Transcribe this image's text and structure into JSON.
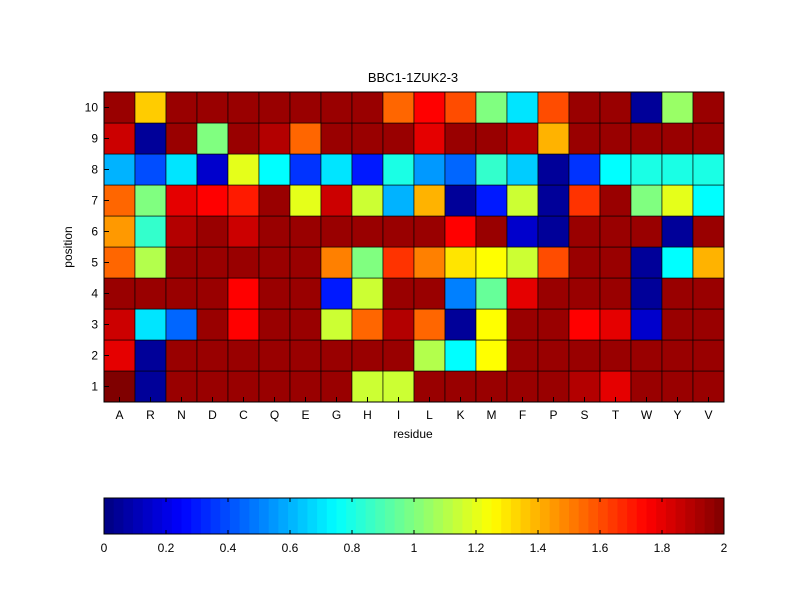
{
  "chart_data": {
    "type": "heatmap",
    "title": "BBC1-1ZUK2-3",
    "xlabel": "residue",
    "ylabel": "position",
    "x_categories": [
      "A",
      "R",
      "N",
      "D",
      "C",
      "Q",
      "E",
      "G",
      "H",
      "I",
      "L",
      "K",
      "M",
      "F",
      "P",
      "S",
      "T",
      "W",
      "Y",
      "V"
    ],
    "y_categories": [
      "1",
      "2",
      "3",
      "4",
      "5",
      "6",
      "7",
      "8",
      "9",
      "10"
    ],
    "values": [
      [
        2.0,
        0.05,
        1.95,
        1.95,
        1.95,
        1.95,
        1.95,
        1.95,
        1.15,
        1.15,
        1.95,
        1.95,
        1.95,
        1.95,
        1.95,
        1.9,
        1.8,
        1.95,
        1.95,
        1.95
      ],
      [
        1.8,
        0.05,
        1.95,
        1.95,
        1.95,
        1.95,
        1.95,
        1.95,
        1.95,
        1.95,
        1.1,
        0.75,
        1.25,
        1.95,
        1.95,
        1.95,
        1.95,
        1.95,
        1.95,
        1.95
      ],
      [
        1.85,
        0.7,
        0.45,
        1.95,
        1.75,
        1.95,
        1.95,
        1.15,
        1.55,
        1.9,
        1.55,
        0.05,
        1.25,
        1.95,
        1.95,
        1.75,
        1.8,
        0.15,
        1.95,
        1.95
      ],
      [
        1.95,
        1.95,
        1.95,
        1.95,
        1.75,
        1.95,
        1.95,
        0.3,
        1.15,
        1.95,
        1.95,
        0.5,
        0.95,
        1.8,
        1.95,
        1.95,
        1.95,
        0.05,
        1.95,
        1.95
      ],
      [
        1.55,
        1.1,
        1.95,
        1.95,
        1.95,
        1.95,
        1.95,
        1.5,
        1.0,
        1.65,
        1.5,
        1.3,
        1.25,
        1.15,
        1.6,
        1.95,
        1.95,
        0.05,
        0.75,
        1.4
      ],
      [
        1.45,
        0.85,
        1.9,
        1.95,
        1.85,
        1.95,
        1.95,
        1.95,
        1.95,
        1.95,
        1.95,
        1.75,
        1.95,
        0.15,
        0.05,
        1.95,
        1.95,
        1.95,
        0.05,
        1.95
      ],
      [
        1.55,
        1.0,
        1.8,
        1.75,
        1.7,
        1.95,
        1.2,
        1.85,
        1.15,
        0.6,
        1.4,
        0.05,
        0.3,
        1.15,
        0.05,
        1.65,
        1.95,
        1.0,
        1.2,
        0.75
      ],
      [
        0.6,
        0.4,
        0.7,
        0.15,
        1.2,
        0.75,
        0.35,
        0.7,
        0.3,
        0.8,
        0.55,
        0.45,
        0.85,
        0.65,
        0.05,
        0.35,
        0.75,
        0.8,
        0.8,
        0.8
      ],
      [
        1.85,
        0.05,
        1.95,
        1.0,
        1.95,
        1.9,
        1.55,
        1.95,
        1.95,
        1.95,
        1.8,
        1.95,
        1.95,
        1.9,
        1.4,
        1.95,
        1.95,
        1.95,
        1.95,
        1.95
      ],
      [
        1.95,
        1.35,
        1.95,
        1.95,
        1.95,
        1.95,
        1.95,
        1.95,
        1.95,
        1.55,
        1.75,
        1.6,
        1.0,
        0.7,
        1.6,
        1.95,
        1.95,
        0.05,
        1.05,
        1.95
      ]
    ],
    "colormap": "jet",
    "clim": [
      0,
      2
    ],
    "colorbar": {
      "orientation": "horizontal",
      "ticks": [
        "0",
        "0.2",
        "0.4",
        "0.6",
        "0.8",
        "1",
        "1.2",
        "1.4",
        "1.6",
        "1.8",
        "2"
      ]
    },
    "grid": false
  }
}
